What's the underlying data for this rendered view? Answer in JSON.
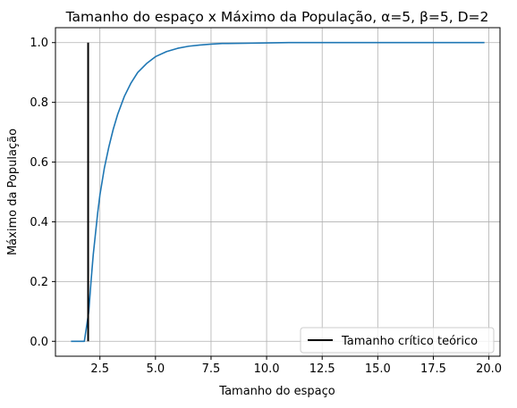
{
  "chart_data": {
    "type": "line",
    "title": "Tamanho do espaço x Máximo da População, α=5, β=5, D=2",
    "xlabel": "Tamanho do espaço",
    "ylabel": "Máximo da População",
    "xlim": [
      0.5,
      20.5
    ],
    "ylim": [
      -0.05,
      1.05
    ],
    "x_ticks": [
      2.5,
      5.0,
      7.5,
      10.0,
      12.5,
      15.0,
      17.5,
      20.0
    ],
    "x_tick_labels": [
      "2.5",
      "5.0",
      "7.5",
      "10.0",
      "12.5",
      "15.0",
      "17.5",
      "20.0"
    ],
    "y_ticks": [
      0.0,
      0.2,
      0.4,
      0.6,
      0.8,
      1.0
    ],
    "y_tick_labels": [
      "0.0",
      "0.2",
      "0.4",
      "0.6",
      "0.8",
      "1.0"
    ],
    "grid": true,
    "legend_position": "lower-right",
    "series": [
      {
        "color": "#1f77b4",
        "x": [
          1.2,
          1.5,
          1.8,
          2.0,
          2.1,
          2.2,
          2.3,
          2.4,
          2.5,
          2.7,
          2.9,
          3.1,
          3.3,
          3.6,
          3.9,
          4.2,
          4.6,
          5.0,
          5.5,
          6.0,
          6.5,
          7.0,
          7.5,
          8.0,
          9.0,
          10.0,
          11.0,
          12.5,
          15.0,
          17.5,
          19.8
        ],
        "y": [
          0.0,
          0.0,
          0.0,
          0.1,
          0.2,
          0.29,
          0.36,
          0.43,
          0.49,
          0.58,
          0.65,
          0.71,
          0.76,
          0.82,
          0.865,
          0.9,
          0.93,
          0.953,
          0.97,
          0.981,
          0.988,
          0.992,
          0.995,
          0.997,
          0.998,
          0.999,
          1.0,
          1.0,
          1.0,
          1.0,
          1.0
        ]
      },
      {
        "name": "Tamanho crítico teórico",
        "color": "#000000",
        "x": [
          1.97,
          1.97
        ],
        "y": [
          0.0,
          1.0
        ]
      }
    ]
  }
}
